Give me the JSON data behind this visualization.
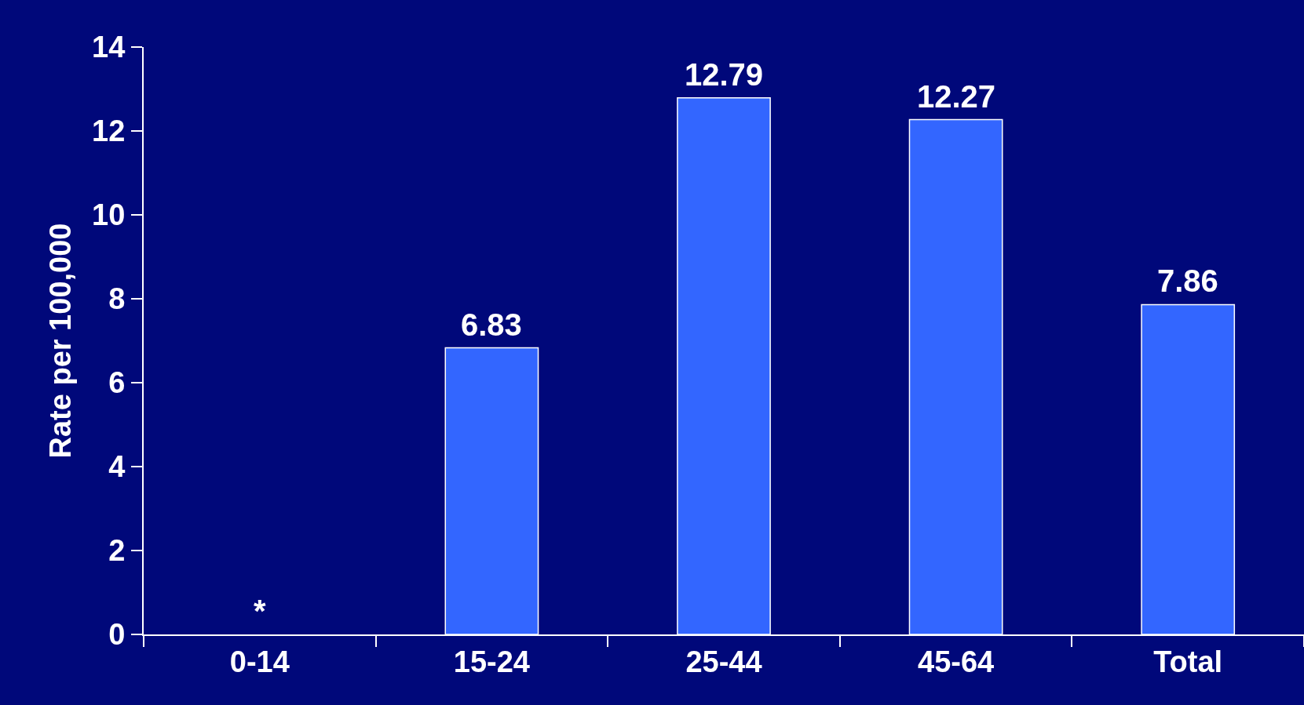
{
  "chart_data": {
    "type": "bar",
    "ylabel": "Rate per 100,000",
    "categories": [
      "0-14",
      "15-24",
      "25-44",
      "45-64",
      "Total"
    ],
    "values": [
      null,
      6.83,
      12.79,
      12.27,
      7.86
    ],
    "value_labels": [
      "*",
      "6.83",
      "12.79",
      "12.27",
      "7.86"
    ],
    "color": "#3366ff",
    "ylim": [
      0,
      14
    ],
    "yticks": [
      0,
      2,
      4,
      6,
      8,
      10,
      12,
      14
    ],
    "grid": false,
    "legend": false
  }
}
